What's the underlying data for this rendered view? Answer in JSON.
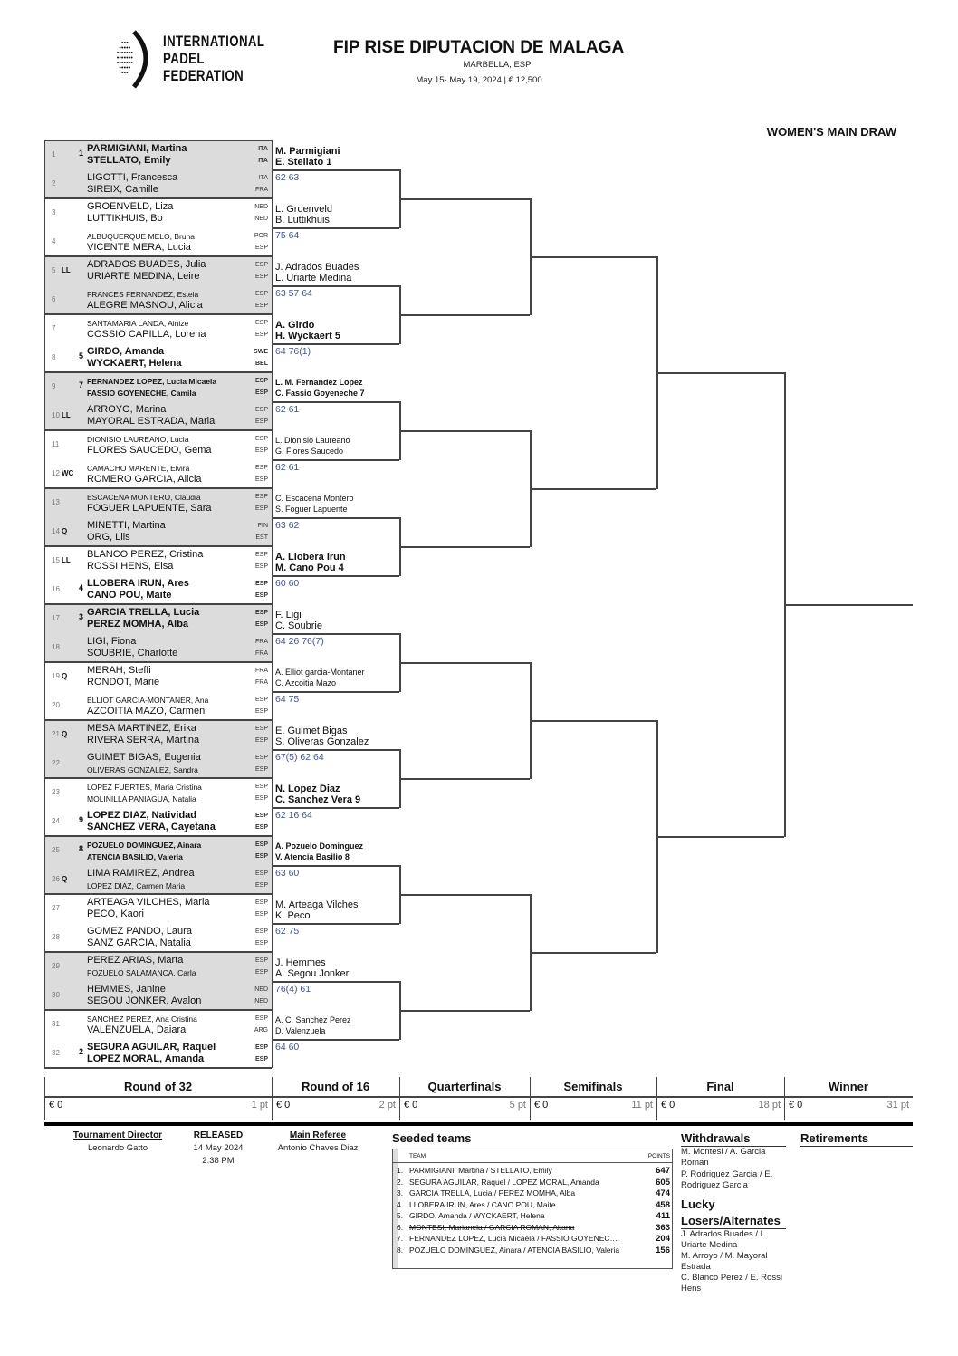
{
  "logo": {
    "lines": [
      "INTERNATIONAL",
      "PADEL",
      "FEDERATION"
    ]
  },
  "header": {
    "title": "FIP RISE DIPUTACION DE MALAGA",
    "location": "MARBELLA, ESP",
    "dates_prize": "May 15- May 19, 2024  |  € 12,500",
    "draw_name": "WOMEN'S MAIN DRAW"
  },
  "entries": [
    {
      "num": "1",
      "status": "",
      "seed": "1",
      "players": [
        "PARMIGIANI, Martina",
        "STELLATO, Emily"
      ],
      "nations": [
        "ITA",
        "ITA"
      ]
    },
    {
      "num": "2",
      "status": "",
      "seed": "",
      "players": [
        "LIGOTTI, Francesca",
        "SIREIX, Camille"
      ],
      "nations": [
        "ITA",
        "FRA"
      ]
    },
    {
      "num": "3",
      "status": "",
      "seed": "",
      "players": [
        "GROENVELD, Liza",
        "LUTTIKHUIS, Bo"
      ],
      "nations": [
        "NED",
        "NED"
      ]
    },
    {
      "num": "4",
      "status": "",
      "seed": "",
      "players": [
        "ALBUQUERQUE MELO, Bruna",
        "VICENTE MERA, Lucia"
      ],
      "nations": [
        "POR",
        "ESP"
      ]
    },
    {
      "num": "5",
      "status": "LL",
      "seed": "",
      "players": [
        "ADRADOS BUADES, Julia",
        "URIARTE MEDINA, Leire"
      ],
      "nations": [
        "ESP",
        "ESP"
      ]
    },
    {
      "num": "6",
      "status": "",
      "seed": "",
      "players": [
        "FRANCES FERNANDEZ, Estela",
        "ALEGRE MASNOU, Alicia"
      ],
      "nations": [
        "ESP",
        "ESP"
      ]
    },
    {
      "num": "7",
      "status": "",
      "seed": "",
      "players": [
        "SANTAMARIA LANDA, Ainize",
        "COSSIO CAPILLA, Lorena"
      ],
      "nations": [
        "ESP",
        "ESP"
      ]
    },
    {
      "num": "8",
      "status": "",
      "seed": "5",
      "players": [
        "GIRDO, Amanda",
        "WYCKAERT, Helena"
      ],
      "nations": [
        "SWE",
        "BEL"
      ]
    },
    {
      "num": "9",
      "status": "",
      "seed": "7",
      "players": [
        "FERNANDEZ LOPEZ, Lucia Micaela",
        "FASSIO GOYENECHE, Camila"
      ],
      "nations": [
        "ESP",
        "ESP"
      ]
    },
    {
      "num": "10",
      "status": "LL",
      "seed": "",
      "players": [
        "ARROYO, Marina",
        "MAYORAL ESTRADA, Maria"
      ],
      "nations": [
        "ESP",
        "ESP"
      ]
    },
    {
      "num": "11",
      "status": "",
      "seed": "",
      "players": [
        "DIONISIO LAUREANO, Lucia",
        "FLORES SAUCEDO, Gema"
      ],
      "nations": [
        "ESP",
        "ESP"
      ]
    },
    {
      "num": "12",
      "status": "WC",
      "seed": "",
      "players": [
        "CAMACHO MARENTE, Elvira",
        "ROMERO GARCIA, Alicia"
      ],
      "nations": [
        "ESP",
        "ESP"
      ]
    },
    {
      "num": "13",
      "status": "",
      "seed": "",
      "players": [
        "ESCACENA MONTERO, Claudia",
        "FOGUER LAPUENTE, Sara"
      ],
      "nations": [
        "ESP",
        "ESP"
      ]
    },
    {
      "num": "14",
      "status": "Q",
      "seed": "",
      "players": [
        "MINETTI, Martina",
        "ORG, Liis"
      ],
      "nations": [
        "FIN",
        "EST"
      ]
    },
    {
      "num": "15",
      "status": "LL",
      "seed": "",
      "players": [
        "BLANCO PEREZ, Cristina",
        "ROSSI HENS, Elsa"
      ],
      "nations": [
        "ESP",
        "ESP"
      ]
    },
    {
      "num": "16",
      "status": "",
      "seed": "4",
      "players": [
        "LLOBERA IRUN, Ares",
        "CANO POU, Maite"
      ],
      "nations": [
        "ESP",
        "ESP"
      ]
    },
    {
      "num": "17",
      "status": "",
      "seed": "3",
      "players": [
        "GARCIA TRELLA, Lucia",
        "PEREZ MOMHA, Alba"
      ],
      "nations": [
        "ESP",
        "ESP"
      ]
    },
    {
      "num": "18",
      "status": "",
      "seed": "",
      "players": [
        "LIGI, Fiona",
        "SOUBRIE, Charlotte"
      ],
      "nations": [
        "FRA",
        "FRA"
      ]
    },
    {
      "num": "19",
      "status": "Q",
      "seed": "",
      "players": [
        "MERAH, Steffi",
        "RONDOT, Marie"
      ],
      "nations": [
        "FRA",
        "FRA"
      ]
    },
    {
      "num": "20",
      "status": "",
      "seed": "",
      "players": [
        "ELLIOT GARCIA-MONTANER, Ana",
        "AZCOITIA MAZO, Carmen"
      ],
      "nations": [
        "ESP",
        "ESP"
      ]
    },
    {
      "num": "21",
      "status": "Q",
      "seed": "",
      "players": [
        "MESA MARTINEZ, Erika",
        "RIVERA SERRA, Martina"
      ],
      "nations": [
        "ESP",
        "ESP"
      ]
    },
    {
      "num": "22",
      "status": "",
      "seed": "",
      "players": [
        "GUIMET BIGAS, Eugenia",
        "OLIVERAS GONZALEZ, Sandra"
      ],
      "nations": [
        "ESP",
        "ESP"
      ]
    },
    {
      "num": "23",
      "status": "",
      "seed": "",
      "players": [
        "LOPEZ FUERTES, Maria Cristina",
        "MOLINILLA PANIAGUA, Natalia"
      ],
      "nations": [
        "ESP",
        "ESP"
      ]
    },
    {
      "num": "24",
      "status": "",
      "seed": "9",
      "players": [
        "LOPEZ DIAZ, Natividad",
        "SANCHEZ VERA, Cayetana"
      ],
      "nations": [
        "ESP",
        "ESP"
      ]
    },
    {
      "num": "25",
      "status": "",
      "seed": "8",
      "players": [
        "POZUELO DOMINGUEZ, Ainara",
        "ATENCIA BASILIO, Valeria"
      ],
      "nations": [
        "ESP",
        "ESP"
      ]
    },
    {
      "num": "26",
      "status": "Q",
      "seed": "",
      "players": [
        "LIMA RAMIREZ, Andrea",
        "LOPEZ DIAZ, Carmen Maria"
      ],
      "nations": [
        "ESP",
        "ESP"
      ]
    },
    {
      "num": "27",
      "status": "",
      "seed": "",
      "players": [
        "ARTEAGA VILCHES, Maria",
        "PECO, Kaori"
      ],
      "nations": [
        "ESP",
        "ESP"
      ]
    },
    {
      "num": "28",
      "status": "",
      "seed": "",
      "players": [
        "GOMEZ PANDO, Laura",
        "SANZ GARCIA, Natalia"
      ],
      "nations": [
        "ESP",
        "ESP"
      ]
    },
    {
      "num": "29",
      "status": "",
      "seed": "",
      "players": [
        "PEREZ ARIAS, Marta",
        "POZUELO SALAMANCA, Carla"
      ],
      "nations": [
        "ESP",
        "ESP"
      ]
    },
    {
      "num": "30",
      "status": "",
      "seed": "",
      "players": [
        "HEMMES, Janine",
        "SEGOU JONKER, Avalon"
      ],
      "nations": [
        "NED",
        "NED"
      ]
    },
    {
      "num": "31",
      "status": "",
      "seed": "",
      "players": [
        "SANCHEZ PEREZ, Ana Cristina",
        "VALENZUELA, Daiara"
      ],
      "nations": [
        "ESP",
        "ARG"
      ]
    },
    {
      "num": "32",
      "status": "",
      "seed": "2",
      "players": [
        "SEGURA AGUILAR, Raquel",
        "LOPEZ MORAL, Amanda"
      ],
      "nations": [
        "ESP",
        "ESP"
      ]
    }
  ],
  "round_of_32_results": [
    {
      "winner": [
        "M. Parmigiani",
        "E. Stellato  1"
      ],
      "score": "62 63",
      "seeded": true
    },
    {
      "winner": [
        "L. Groenveld",
        "B. Luttikhuis"
      ],
      "score": "75 64",
      "seeded": false
    },
    {
      "winner": [
        "J. Adrados Buades",
        "L. Uriarte Medina"
      ],
      "score": "63 57 64",
      "seeded": false
    },
    {
      "winner": [
        "A. Girdo",
        "H. Wyckaert  5"
      ],
      "score": "64 76(1)",
      "seeded": true
    },
    {
      "winner": [
        "L. M. Fernandez Lopez",
        "C. Fassio Goyeneche  7"
      ],
      "score": "62 61",
      "seeded": true
    },
    {
      "winner": [
        "L. Dionisio Laureano",
        "G. Flores Saucedo"
      ],
      "score": "62 61",
      "seeded": false
    },
    {
      "winner": [
        "C. Escacena Montero",
        "S. Foguer Lapuente"
      ],
      "score": "63 62",
      "seeded": false
    },
    {
      "winner": [
        "A. Llobera Irun",
        "M. Cano Pou  4"
      ],
      "score": "60 60",
      "seeded": true
    },
    {
      "winner": [
        "F. Ligi",
        "C. Soubrie"
      ],
      "score": "64 26 76(7)",
      "seeded": false
    },
    {
      "winner": [
        "A. Elliot garcia-Montaner",
        "C. Azcoitia Mazo"
      ],
      "score": "64 75",
      "seeded": false
    },
    {
      "winner": [
        "E. Guimet Bigas",
        "S. Oliveras Gonzalez"
      ],
      "score": "67(5) 62 64",
      "seeded": false
    },
    {
      "winner": [
        "N. Lopez Diaz",
        "C. Sanchez Vera  9"
      ],
      "score": "62 16 64",
      "seeded": true
    },
    {
      "winner": [
        "A. Pozuelo Dominguez",
        "V. Atencia Basilio  8"
      ],
      "score": "63 60",
      "seeded": true
    },
    {
      "winner": [
        "M. Arteaga Vilches",
        "K. Peco"
      ],
      "score": "62 75",
      "seeded": false
    },
    {
      "winner": [
        "J. Hemmes",
        "A. Segou Jonker"
      ],
      "score": "76(4) 61",
      "seeded": false
    },
    {
      "winner": [
        "A. C. Sanchez Perez",
        "D. Valenzuela"
      ],
      "score": "64 60",
      "seeded": false
    }
  ],
  "rounds": [
    {
      "name": "Round of 32",
      "prize": "€ 0",
      "points": "1 pt"
    },
    {
      "name": "Round of 16",
      "prize": "€ 0",
      "points": "2 pt"
    },
    {
      "name": "Quarterfinals",
      "prize": "€ 0",
      "points": "5 pt"
    },
    {
      "name": "Semifinals",
      "prize": "€ 0",
      "points": "11 pt"
    },
    {
      "name": "Final",
      "prize": "€ 0",
      "points": "18 pt"
    },
    {
      "name": "Winner",
      "prize": "€ 0",
      "points": "31 pt"
    }
  ],
  "footer": {
    "director_label": "Tournament Director",
    "director": "Leonardo Gatto",
    "released_label": "RELEASED",
    "released_date": "14 May 2024",
    "released_time": "2:38 PM",
    "referee_label": "Main Referee",
    "referee": "Antonio Chaves Diaz",
    "seeded_title": "Seeded teams",
    "team_header": "TEAM",
    "points_header": "POINTS",
    "seeded": [
      {
        "n": "1.",
        "team": "PARMIGIANI, Martina / STELLATO, Emily",
        "points": "647",
        "withdrawn": false
      },
      {
        "n": "2.",
        "team": "SEGURA AGUILAR, Raquel / LOPEZ MORAL, Amanda",
        "points": "605",
        "withdrawn": false
      },
      {
        "n": "3.",
        "team": "GARCIA TRELLA, Lucia / PEREZ MOMHA, Alba",
        "points": "474",
        "withdrawn": false
      },
      {
        "n": "4.",
        "team": "LLOBERA IRUN, Ares / CANO POU, Maite",
        "points": "458",
        "withdrawn": false
      },
      {
        "n": "5.",
        "team": "GIRDO, Amanda / WYCKAERT, Helena",
        "points": "411",
        "withdrawn": false
      },
      {
        "n": "6.",
        "team": "MONTESI, Marianela / GARCIA ROMAN, Aitana",
        "points": "363",
        "withdrawn": true
      },
      {
        "n": "7.",
        "team": "FERNANDEZ LOPEZ, Lucia Micaela / FASSIO GOYENEC…",
        "points": "204",
        "withdrawn": false
      },
      {
        "n": "8.",
        "team": "POZUELO DOMINGUEZ, Ainara / ATENCIA BASILIO, Valeria",
        "points": "156",
        "withdrawn": false
      }
    ],
    "withdrawals_title": "Withdrawals",
    "withdrawals": [
      "M. Montesi / A. Garcia Roman",
      "P. Rodriguez Garcia / E. Rodriguez Garcia"
    ],
    "retirements_title": "Retirements",
    "lucky_title": "Lucky Losers/Alternates",
    "lucky": [
      "J. Adrados Buades / L. Uriarte Medina",
      "M. Arroyo / M. Mayoral Estrada",
      "C. Blanco Perez / E. Rossi Hens"
    ]
  }
}
